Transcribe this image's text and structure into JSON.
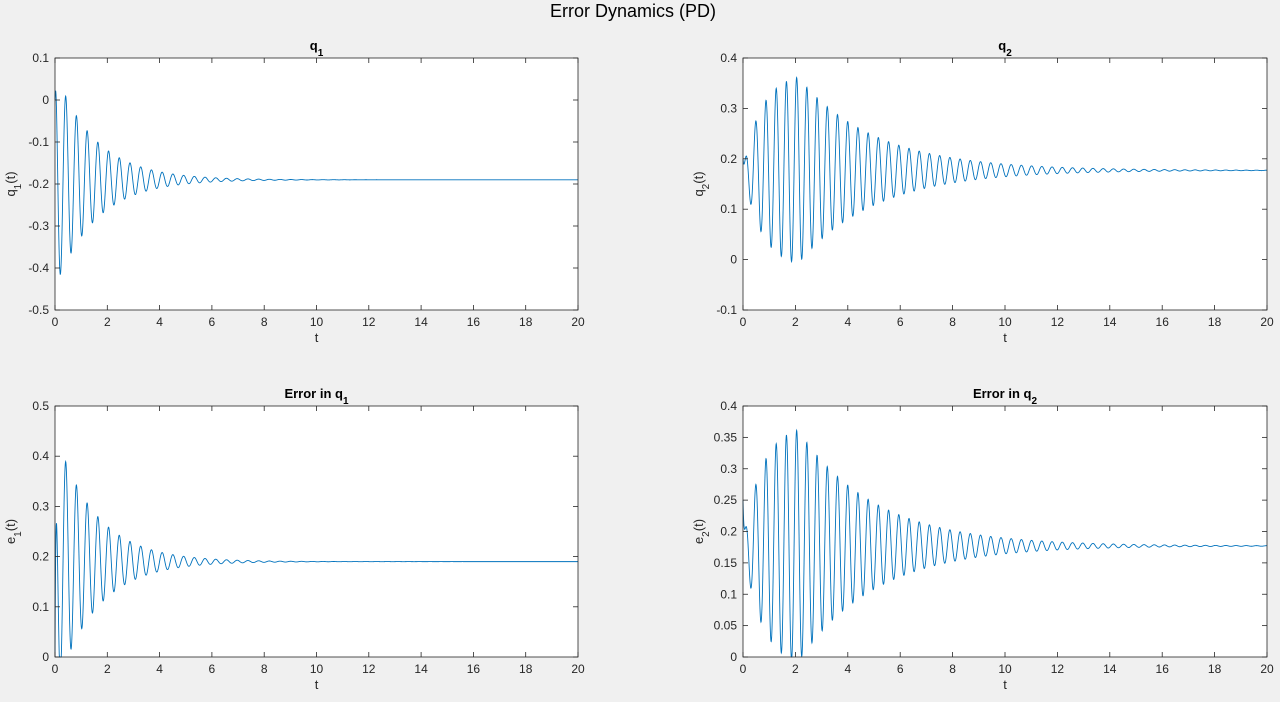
{
  "figure": {
    "title": "Error Dynamics (PD)",
    "background": "#f0f0f0",
    "axes_background": "#ffffff",
    "line_color": "#0072bd"
  },
  "chart_data": [
    {
      "type": "line",
      "title": "q",
      "title_sub": "1",
      "xlabel": "t",
      "ylabel": "q",
      "ylabel_sub": "1",
      "ylabel_suffix": "(t)",
      "xlim": [
        0,
        20
      ],
      "ylim": [
        -0.5,
        0.1
      ],
      "xticks": [
        0,
        2,
        4,
        6,
        8,
        10,
        12,
        14,
        16,
        18,
        20
      ],
      "yticks": [
        -0.5,
        -0.4,
        -0.3,
        -0.2,
        -0.1,
        0,
        0.1
      ],
      "ytick_labels": [
        "-0.5",
        "-0.4",
        "-0.3",
        "-0.2",
        "-0.1",
        "0",
        "0.1"
      ],
      "grid": false,
      "series": [
        {
          "signal": {
            "start": 0.0,
            "steady": -0.19,
            "amplitude": 0.26,
            "decay": 0.65,
            "period": 0.41,
            "phase": 1.5708,
            "growth": 0
          }
        }
      ]
    },
    {
      "type": "line",
      "title": "q",
      "title_sub": "2",
      "xlabel": "t",
      "ylabel": "q",
      "ylabel_sub": "2",
      "ylabel_suffix": "(t)",
      "xlim": [
        0,
        20
      ],
      "ylim": [
        -0.1,
        0.4
      ],
      "xticks": [
        0,
        2,
        4,
        6,
        8,
        10,
        12,
        14,
        16,
        18,
        20
      ],
      "yticks": [
        -0.1,
        0,
        0.1,
        0.2,
        0.3,
        0.4
      ],
      "ytick_labels": [
        "-0.1",
        "0",
        "0.1",
        "0.2",
        "0.3",
        "0.4"
      ],
      "grid": false,
      "series": [
        {
          "signal": {
            "start": 0.2,
            "steady": 0.177,
            "amplitude": 0.185,
            "decay": 0.34,
            "period": 0.39,
            "phase": 0,
            "growth": 0.7,
            "peak_time": 2.1
          }
        }
      ]
    },
    {
      "type": "line",
      "title": "Error in q",
      "title_sub": "1",
      "xlabel": "t",
      "ylabel": "e",
      "ylabel_sub": "1",
      "ylabel_suffix": "(t)",
      "xlim": [
        0,
        20
      ],
      "ylim": [
        0,
        0.5
      ],
      "xticks": [
        0,
        2,
        4,
        6,
        8,
        10,
        12,
        14,
        16,
        18,
        20
      ],
      "yticks": [
        0,
        0.1,
        0.2,
        0.3,
        0.4,
        0.5
      ],
      "ytick_labels": [
        "0",
        "0.1",
        "0.2",
        "0.3",
        "0.4",
        "0.5"
      ],
      "grid": false,
      "series": [
        {
          "signal": {
            "start": 0.0,
            "steady": 0.19,
            "amplitude": 0.26,
            "decay": 0.65,
            "period": 0.41,
            "phase": 1.5708,
            "growth": 0,
            "clip_low": 0
          }
        }
      ]
    },
    {
      "type": "line",
      "title": "Error in q",
      "title_sub": "2",
      "xlabel": "t",
      "ylabel": "e",
      "ylabel_sub": "2",
      "ylabel_suffix": "(t)",
      "xlim": [
        0,
        20
      ],
      "ylim": [
        0,
        0.4
      ],
      "xticks": [
        0,
        2,
        4,
        6,
        8,
        10,
        12,
        14,
        16,
        18,
        20
      ],
      "yticks": [
        0,
        0.05,
        0.1,
        0.15,
        0.2,
        0.25,
        0.3,
        0.35,
        0.4
      ],
      "ytick_labels": [
        "0",
        "0.05",
        "0.1",
        "0.15",
        "0.2",
        "0.25",
        "0.3",
        "0.35",
        "0.4"
      ],
      "grid": false,
      "series": [
        {
          "signal": {
            "start": 0.25,
            "steady": 0.177,
            "amplitude": 0.185,
            "decay": 0.34,
            "period": 0.39,
            "phase": 0,
            "growth": 0.7,
            "peak_time": 2.1,
            "clip_low": 0
          }
        }
      ]
    }
  ]
}
